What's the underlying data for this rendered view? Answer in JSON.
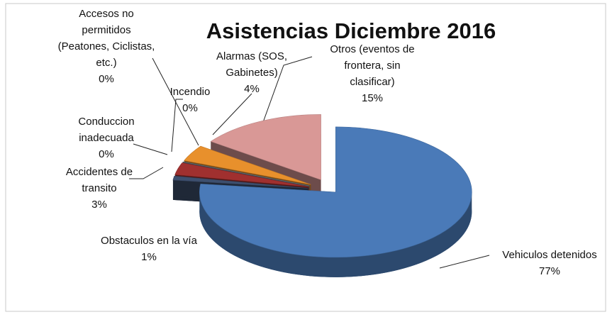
{
  "chart_data": {
    "type": "pie",
    "title": "Asistencias Diciembre 2016",
    "categories": [
      "Vehiculos detenidos",
      "Obstaculos en la vía",
      "Accidentes de transito",
      "Conduccion inadecuada",
      "Incendio",
      "Accesos no permitidos (Peatones, Ciclistas, etc.)",
      "Alarmas (SOS, Gabinetes)",
      "Otros (eventos de frontera, sin clasificar)"
    ],
    "values": [
      77,
      1,
      3,
      0,
      0,
      0,
      4,
      15
    ],
    "value_labels": [
      "77%",
      "1%",
      "3%",
      "0%",
      "0%",
      "0%",
      "4%",
      "15%"
    ],
    "colors": [
      "#4a7ab8",
      "#3d4f6e",
      "#a0302f",
      "#6e5a91",
      "#3a9bb0",
      "#7a8a9a",
      "#e8902c",
      "#d99896"
    ]
  }
}
